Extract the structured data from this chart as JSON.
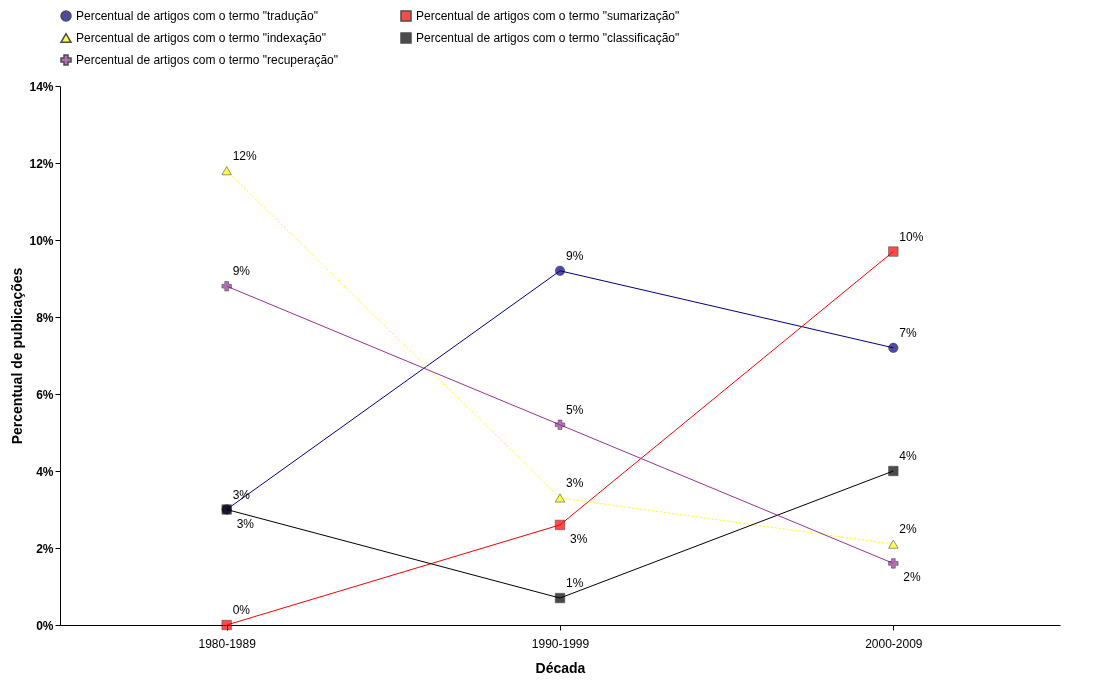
{
  "chart_data": {
    "type": "line",
    "xlabel": "Década",
    "ylabel": "Percentual de publicações",
    "categories": [
      "1980-1989",
      "1990-1999",
      "2000-2009"
    ],
    "ylim": [
      0,
      14
    ],
    "yticks": [
      {
        "value": 0,
        "label": "0%"
      },
      {
        "value": 2,
        "label": "2%"
      },
      {
        "value": 4,
        "label": "4%"
      },
      {
        "value": 6,
        "label": "6%"
      },
      {
        "value": 8,
        "label": "8%"
      },
      {
        "value": 10,
        "label": "10%"
      },
      {
        "value": 12,
        "label": "12%"
      },
      {
        "value": 14,
        "label": "14%"
      }
    ],
    "grid": false,
    "legend": "top",
    "series": [
      {
        "name": "Percentual de artigos com o termo \"tradução\"",
        "color": "#000080",
        "marker": "circle",
        "line_style": "solid",
        "values": [
          3.0,
          9.2,
          7.2
        ],
        "value_labels": [
          "3%",
          "9%",
          "7%"
        ]
      },
      {
        "name": "Percentual de artigos com o termo \"sumarização\"",
        "color": "#ff0000",
        "marker": "square",
        "line_style": "solid",
        "values": [
          0,
          2.6,
          9.7
        ],
        "value_labels": [
          "0%",
          "3%",
          "10%"
        ]
      },
      {
        "name": "Percentual de artigos com o termo \"indexação\"",
        "color": "#ffff00",
        "marker": "triangle",
        "line_style": "dotted",
        "values": [
          11.8,
          3.3,
          2.1
        ],
        "value_labels": [
          "12%",
          "3%",
          "2%"
        ]
      },
      {
        "name": "Percentual de artigos com o termo \"classificação\"",
        "color": "#000000",
        "marker": "square",
        "line_style": "solid",
        "values": [
          3.0,
          0.7,
          4.0
        ],
        "value_labels": [
          "3%",
          "1%",
          "4%"
        ]
      },
      {
        "name": "Percentual de artigos com o termo \"recuperação\"",
        "color": "#993399",
        "marker": "cross",
        "line_style": "solid",
        "values": [
          8.8,
          5.2,
          1.6
        ],
        "value_labels": [
          "9%",
          "5%",
          "2%"
        ]
      }
    ]
  }
}
